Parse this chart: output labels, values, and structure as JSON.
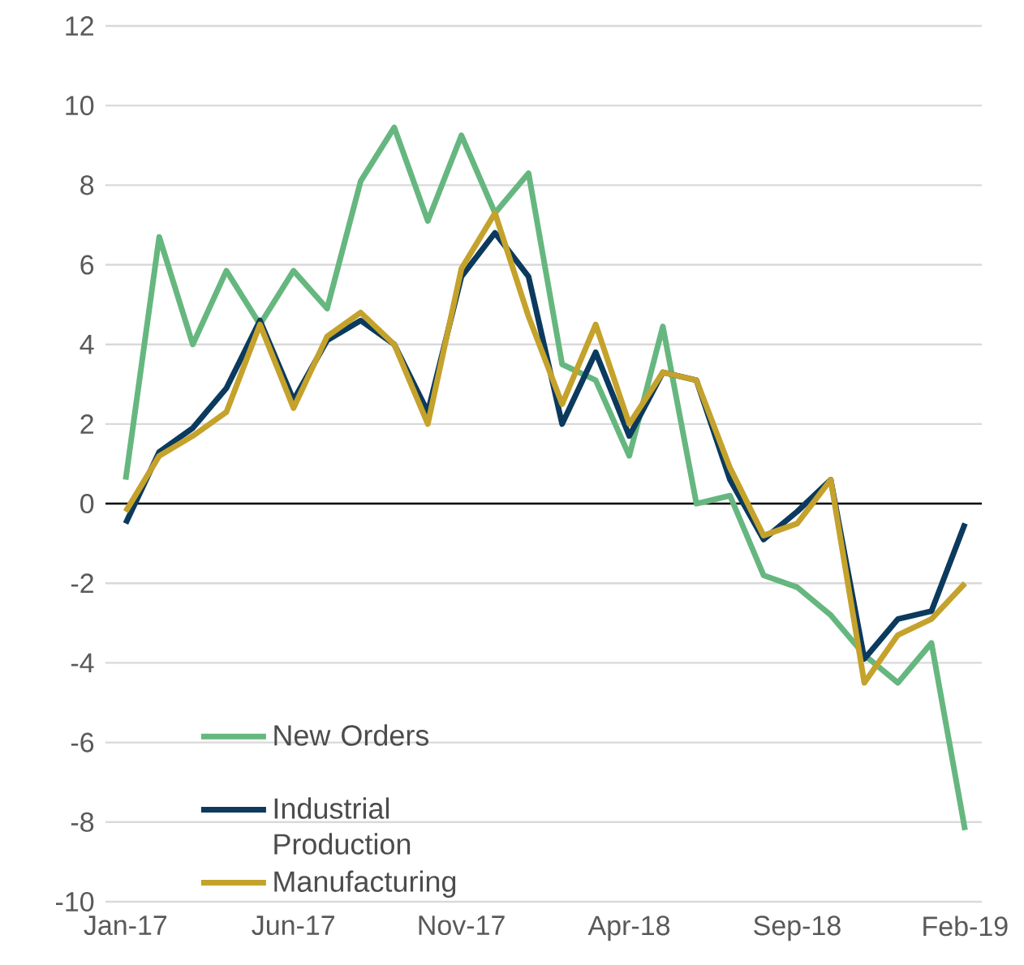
{
  "chart_data": {
    "type": "line",
    "categories": [
      "Jan-17",
      null,
      null,
      null,
      null,
      "Jun-17",
      null,
      null,
      null,
      null,
      "Nov-17",
      null,
      null,
      null,
      null,
      "Apr-18",
      null,
      null,
      null,
      null,
      "Sep-18",
      null,
      null,
      null,
      null,
      "Feb-19"
    ],
    "series": [
      {
        "name": "New Orders",
        "color": "#66b77f",
        "values": [
          0.6,
          6.7,
          4.0,
          5.85,
          4.5,
          5.85,
          4.9,
          8.1,
          9.45,
          7.1,
          9.25,
          7.3,
          8.3,
          3.5,
          3.1,
          1.2,
          4.45,
          0.0,
          0.2,
          -1.8,
          -2.1,
          -2.8,
          -3.8,
          -4.5,
          -3.5,
          -8.2
        ]
      },
      {
        "name": "Industrial Production",
        "color": "#0b3a5e",
        "values": [
          -0.5,
          1.3,
          1.9,
          2.9,
          4.6,
          2.6,
          4.1,
          4.6,
          4.0,
          2.3,
          5.7,
          6.8,
          5.7,
          2.0,
          3.8,
          1.7,
          3.3,
          3.1,
          0.6,
          -0.9,
          -0.2,
          0.6,
          -3.9,
          -2.9,
          -2.7,
          -0.5
        ]
      },
      {
        "name": "Manufacturing",
        "color": "#c4a22c",
        "values": [
          -0.2,
          1.2,
          1.7,
          2.3,
          4.5,
          2.4,
          4.2,
          4.8,
          4.0,
          2.0,
          5.9,
          7.3,
          4.7,
          2.5,
          4.5,
          2.0,
          3.3,
          3.1,
          0.9,
          -0.8,
          -0.5,
          0.6,
          -4.5,
          -3.3,
          -2.9,
          -2.0
        ]
      }
    ],
    "ylim": [
      -10,
      12
    ],
    "yticks": [
      -10,
      -8,
      -6,
      -4,
      -2,
      0,
      2,
      4,
      6,
      8,
      10,
      12
    ],
    "grid": "y",
    "legend": "bottom left",
    "marker": "none",
    "line_style": "solid",
    "ref_lines": [
      {
        "axis": "y",
        "value": 0,
        "color": "#000000"
      }
    ]
  }
}
